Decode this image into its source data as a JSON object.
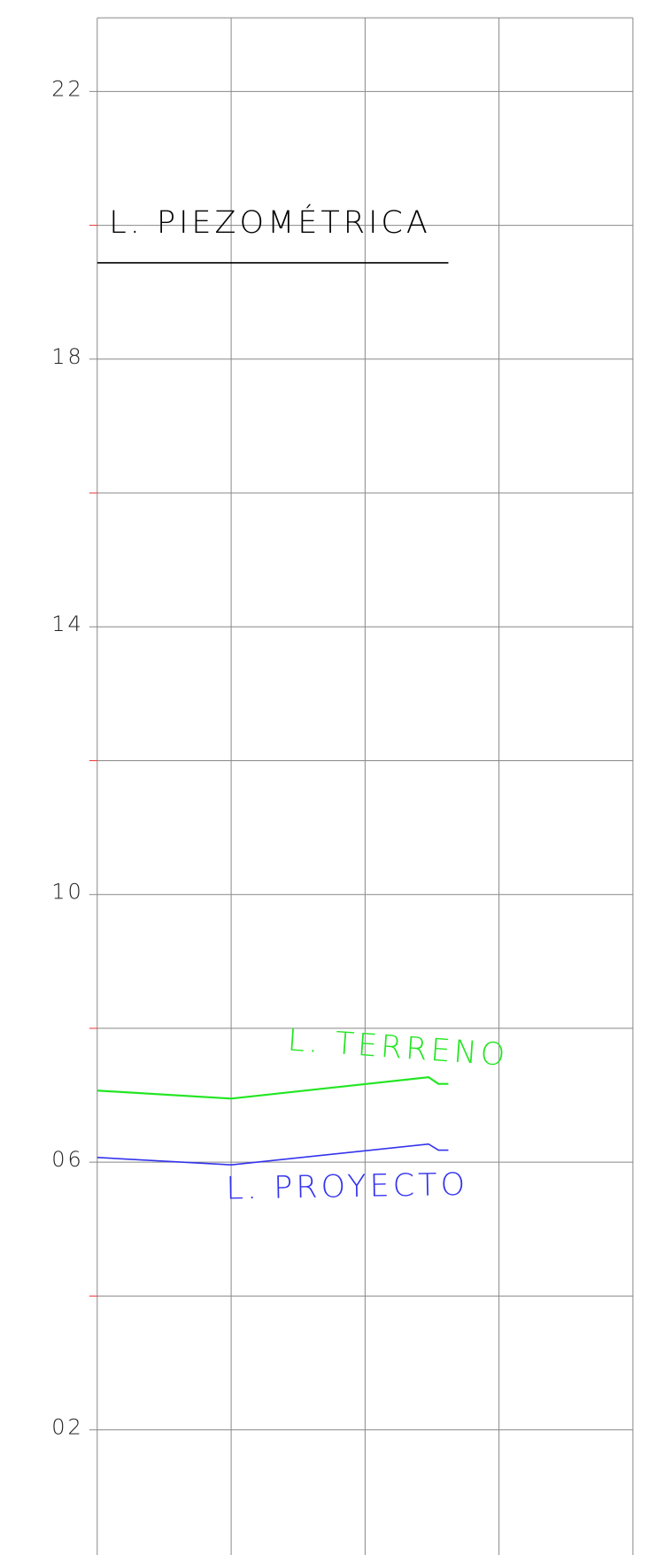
{
  "chart_data": {
    "type": "line",
    "xlim": [
      0,
      4
    ],
    "ylim": [
      0.13,
      23.1
    ],
    "yticks": [
      {
        "value": 2,
        "label": "02"
      },
      {
        "value": 6,
        "label": "06"
      },
      10,
      14,
      18,
      22
    ],
    "minor_yticks": [
      4,
      8,
      12,
      16,
      20
    ],
    "grid": true,
    "series": [
      {
        "name": "L. PIEZOMÉTRICA",
        "color": "#000000",
        "x": [
          0,
          2.622
        ],
        "values": [
          19.44,
          19.44
        ]
      },
      {
        "name": "L. TERRENO",
        "color": "#22e622",
        "x": [
          0,
          1,
          2.474,
          2.548,
          2.622
        ],
        "values": [
          7.07,
          6.95,
          7.27,
          7.17,
          7.17
        ]
      },
      {
        "name": "L. PROYECTO",
        "color": "#3333ee",
        "x": [
          0,
          1,
          2.474,
          2.548,
          2.622
        ],
        "values": [
          6.07,
          5.96,
          6.27,
          6.18,
          6.18
        ]
      }
    ]
  }
}
